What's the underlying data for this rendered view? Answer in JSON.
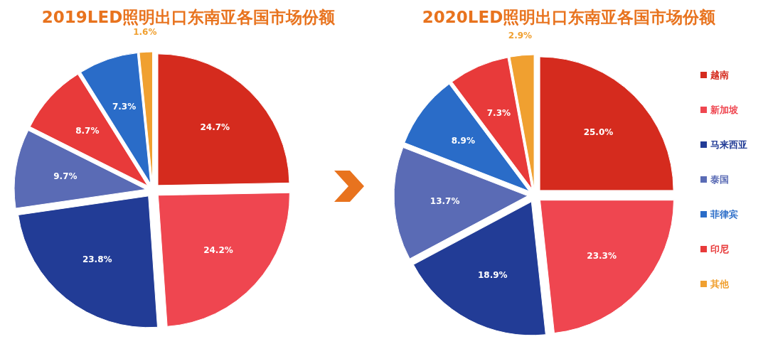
{
  "chart_data": [
    {
      "type": "pie",
      "title": "2019LED照明出口东南亚各国市场份额",
      "categories": [
        null,
        null,
        null,
        null,
        null,
        null,
        null
      ],
      "values": [
        24.7,
        24.2,
        23.8,
        9.7,
        8.7,
        7.3,
        1.6
      ],
      "colors": [
        "#d52b1e",
        "#ef4650",
        "#223c96",
        "#5a6bb5",
        "#e83a3a",
        "#2a6cc8",
        "#f0a030"
      ],
      "value_labels": [
        "24.7%",
        "24.2%",
        "23.8%",
        "9.7%",
        "8.7%",
        "7.3%",
        "1.6%"
      ],
      "legend": false
    },
    {
      "type": "pie",
      "title": "2020LED照明出口东南亚各国市场份额",
      "categories": [
        "越南",
        "新加坡",
        "马来西亚",
        "泰国",
        "菲律宾",
        "印尼",
        "其他"
      ],
      "values": [
        25.0,
        23.3,
        18.9,
        13.7,
        8.9,
        7.3,
        2.9
      ],
      "colors": [
        "#d52b1e",
        "#ef4650",
        "#223c96",
        "#5a6bb5",
        "#2a6cc8",
        "#e83a3a",
        "#f0a030"
      ],
      "value_labels": [
        "25.0%",
        "23.3%",
        "18.9%",
        "13.7%",
        "8.9%",
        "7.3%",
        "2.9%"
      ],
      "legend": "right"
    }
  ]
}
